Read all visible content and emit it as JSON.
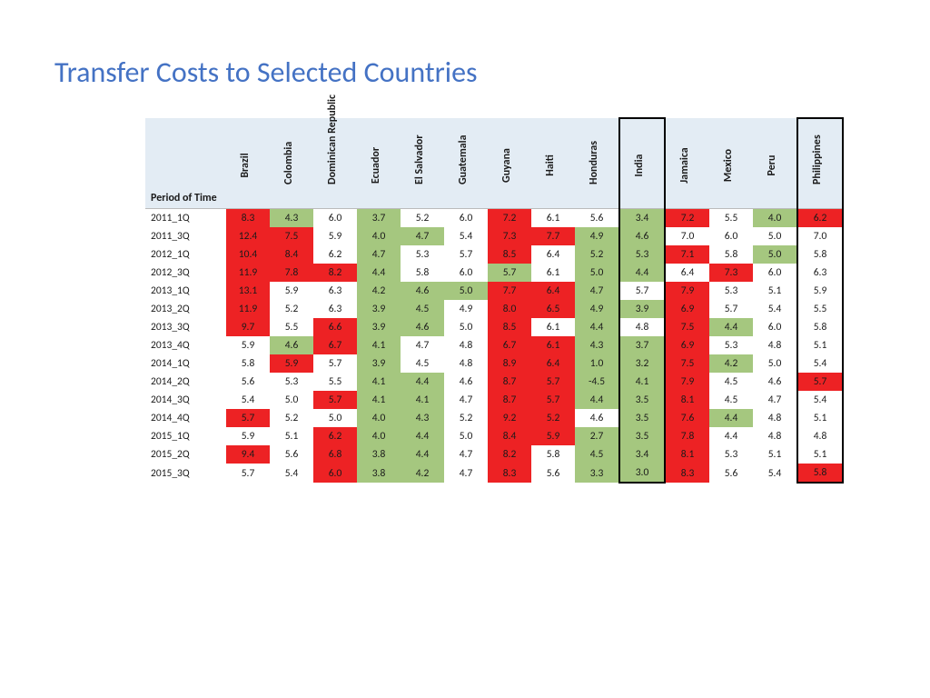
{
  "title": "Transfer Costs to Selected Countries",
  "colors": {
    "red": "#ed2224",
    "green": "#a5c77f",
    "white": "#ffffff",
    "header_bg": "#e3ecf4",
    "title_color": "#4472c4"
  },
  "period_header": "Period of Time",
  "countries": [
    "Brazil",
    "Colombia",
    "Dominican Republic",
    "Ecuador",
    "El Salvador",
    "Guatemala",
    "Guyana",
    "Haiti",
    "Honduras",
    "India",
    "Jamaica",
    "Mexico",
    "Peru",
    "Philippines"
  ],
  "highlight_columns": [
    9,
    13
  ],
  "rows": [
    {
      "period": "2011_1Q",
      "cells": [
        [
          "8.3",
          "r"
        ],
        [
          "4.3",
          "g"
        ],
        [
          "6.0",
          "w"
        ],
        [
          "3.7",
          "g"
        ],
        [
          "5.2",
          "w"
        ],
        [
          "6.0",
          "w"
        ],
        [
          "7.2",
          "r"
        ],
        [
          "6.1",
          "w"
        ],
        [
          "5.6",
          "w"
        ],
        [
          "3.4",
          "g"
        ],
        [
          "7.2",
          "r"
        ],
        [
          "5.5",
          "w"
        ],
        [
          "4.0",
          "g"
        ],
        [
          "6.2",
          "r"
        ]
      ]
    },
    {
      "period": "2011_3Q",
      "cells": [
        [
          "12.4",
          "r"
        ],
        [
          "7.5",
          "r"
        ],
        [
          "5.9",
          "w"
        ],
        [
          "4.0",
          "g"
        ],
        [
          "4.7",
          "g"
        ],
        [
          "5.4",
          "w"
        ],
        [
          "7.3",
          "r"
        ],
        [
          "7.7",
          "r"
        ],
        [
          "4.9",
          "g"
        ],
        [
          "4.6",
          "g"
        ],
        [
          "7.0",
          "w"
        ],
        [
          "6.0",
          "w"
        ],
        [
          "5.0",
          "w"
        ],
        [
          "7.0",
          "w"
        ]
      ]
    },
    {
      "period": "2012_1Q",
      "cells": [
        [
          "10.4",
          "r"
        ],
        [
          "8.4",
          "r"
        ],
        [
          "6.2",
          "w"
        ],
        [
          "4.7",
          "g"
        ],
        [
          "5.3",
          "w"
        ],
        [
          "5.7",
          "w"
        ],
        [
          "8.5",
          "r"
        ],
        [
          "6.4",
          "w"
        ],
        [
          "5.2",
          "g"
        ],
        [
          "5.3",
          "g"
        ],
        [
          "7.1",
          "r"
        ],
        [
          "5.8",
          "w"
        ],
        [
          "5.0",
          "g"
        ],
        [
          "5.8",
          "w"
        ]
      ]
    },
    {
      "period": "2012_3Q",
      "cells": [
        [
          "11.9",
          "r"
        ],
        [
          "7.8",
          "r"
        ],
        [
          "8.2",
          "r"
        ],
        [
          "4.4",
          "g"
        ],
        [
          "5.8",
          "w"
        ],
        [
          "6.0",
          "w"
        ],
        [
          "5.7",
          "g"
        ],
        [
          "6.1",
          "w"
        ],
        [
          "5.0",
          "g"
        ],
        [
          "4.4",
          "g"
        ],
        [
          "6.4",
          "w"
        ],
        [
          "7.3",
          "r"
        ],
        [
          "6.0",
          "w"
        ],
        [
          "6.3",
          "w"
        ]
      ]
    },
    {
      "period": "2013_1Q",
      "cells": [
        [
          "13.1",
          "r"
        ],
        [
          "5.9",
          "w"
        ],
        [
          "6.3",
          "w"
        ],
        [
          "4.2",
          "g"
        ],
        [
          "4.6",
          "g"
        ],
        [
          "5.0",
          "g"
        ],
        [
          "7.7",
          "r"
        ],
        [
          "6.4",
          "r"
        ],
        [
          "4.7",
          "g"
        ],
        [
          "5.7",
          "w"
        ],
        [
          "7.9",
          "r"
        ],
        [
          "5.3",
          "w"
        ],
        [
          "5.1",
          "w"
        ],
        [
          "5.9",
          "w"
        ]
      ]
    },
    {
      "period": "2013_2Q",
      "cells": [
        [
          "11.9",
          "r"
        ],
        [
          "5.2",
          "w"
        ],
        [
          "6.3",
          "w"
        ],
        [
          "3.9",
          "g"
        ],
        [
          "4.5",
          "g"
        ],
        [
          "4.9",
          "w"
        ],
        [
          "8.0",
          "r"
        ],
        [
          "6.5",
          "r"
        ],
        [
          "4.9",
          "g"
        ],
        [
          "3.9",
          "g"
        ],
        [
          "6.9",
          "r"
        ],
        [
          "5.7",
          "w"
        ],
        [
          "5.4",
          "w"
        ],
        [
          "5.5",
          "w"
        ]
      ]
    },
    {
      "period": "2013_3Q",
      "cells": [
        [
          "9.7",
          "r"
        ],
        [
          "5.5",
          "w"
        ],
        [
          "6.6",
          "r"
        ],
        [
          "3.9",
          "g"
        ],
        [
          "4.6",
          "g"
        ],
        [
          "5.0",
          "w"
        ],
        [
          "8.5",
          "r"
        ],
        [
          "6.1",
          "w"
        ],
        [
          "4.4",
          "g"
        ],
        [
          "4.8",
          "w"
        ],
        [
          "7.5",
          "r"
        ],
        [
          "4.4",
          "g"
        ],
        [
          "6.0",
          "w"
        ],
        [
          "5.8",
          "w"
        ]
      ]
    },
    {
      "period": "2013_4Q",
      "cells": [
        [
          "5.9",
          "w"
        ],
        [
          "4.6",
          "g"
        ],
        [
          "6.7",
          "r"
        ],
        [
          "4.1",
          "g"
        ],
        [
          "4.7",
          "w"
        ],
        [
          "4.8",
          "w"
        ],
        [
          "6.7",
          "r"
        ],
        [
          "6.1",
          "r"
        ],
        [
          "4.3",
          "g"
        ],
        [
          "3.7",
          "g"
        ],
        [
          "6.9",
          "r"
        ],
        [
          "5.3",
          "w"
        ],
        [
          "4.8",
          "w"
        ],
        [
          "5.1",
          "w"
        ]
      ]
    },
    {
      "period": "2014_1Q",
      "cells": [
        [
          "5.8",
          "w"
        ],
        [
          "5.9",
          "r"
        ],
        [
          "5.7",
          "w"
        ],
        [
          "3.9",
          "g"
        ],
        [
          "4.5",
          "w"
        ],
        [
          "4.8",
          "w"
        ],
        [
          "8.9",
          "r"
        ],
        [
          "6.4",
          "r"
        ],
        [
          "1.0",
          "g"
        ],
        [
          "3.2",
          "g"
        ],
        [
          "7.5",
          "r"
        ],
        [
          "4.2",
          "g"
        ],
        [
          "5.0",
          "w"
        ],
        [
          "5.4",
          "w"
        ]
      ]
    },
    {
      "period": "2014_2Q",
      "cells": [
        [
          "5.6",
          "w"
        ],
        [
          "5.3",
          "w"
        ],
        [
          "5.5",
          "w"
        ],
        [
          "4.1",
          "g"
        ],
        [
          "4.4",
          "g"
        ],
        [
          "4.6",
          "w"
        ],
        [
          "8.7",
          "r"
        ],
        [
          "5.7",
          "r"
        ],
        [
          "-4.5",
          "g"
        ],
        [
          "4.1",
          "g"
        ],
        [
          "7.9",
          "r"
        ],
        [
          "4.5",
          "w"
        ],
        [
          "4.6",
          "w"
        ],
        [
          "5.7",
          "r"
        ]
      ]
    },
    {
      "period": "2014_3Q",
      "cells": [
        [
          "5.4",
          "w"
        ],
        [
          "5.0",
          "w"
        ],
        [
          "5.7",
          "r"
        ],
        [
          "4.1",
          "g"
        ],
        [
          "4.1",
          "g"
        ],
        [
          "4.7",
          "w"
        ],
        [
          "8.7",
          "r"
        ],
        [
          "5.7",
          "r"
        ],
        [
          "4.4",
          "g"
        ],
        [
          "3.5",
          "g"
        ],
        [
          "8.1",
          "r"
        ],
        [
          "4.5",
          "w"
        ],
        [
          "4.7",
          "w"
        ],
        [
          "5.4",
          "w"
        ]
      ]
    },
    {
      "period": "2014_4Q",
      "cells": [
        [
          "5.7",
          "r"
        ],
        [
          "5.2",
          "w"
        ],
        [
          "5.0",
          "w"
        ],
        [
          "4.0",
          "g"
        ],
        [
          "4.3",
          "g"
        ],
        [
          "5.2",
          "w"
        ],
        [
          "9.2",
          "r"
        ],
        [
          "5.2",
          "r"
        ],
        [
          "4.6",
          "w"
        ],
        [
          "3.5",
          "g"
        ],
        [
          "7.6",
          "r"
        ],
        [
          "4.4",
          "g"
        ],
        [
          "4.8",
          "w"
        ],
        [
          "5.1",
          "w"
        ]
      ]
    },
    {
      "period": "2015_1Q",
      "cells": [
        [
          "5.9",
          "w"
        ],
        [
          "5.1",
          "w"
        ],
        [
          "6.2",
          "r"
        ],
        [
          "4.0",
          "g"
        ],
        [
          "4.4",
          "g"
        ],
        [
          "5.0",
          "w"
        ],
        [
          "8.4",
          "r"
        ],
        [
          "5.9",
          "r"
        ],
        [
          "2.7",
          "g"
        ],
        [
          "3.5",
          "g"
        ],
        [
          "7.8",
          "r"
        ],
        [
          "4.4",
          "w"
        ],
        [
          "4.8",
          "w"
        ],
        [
          "4.8",
          "w"
        ]
      ]
    },
    {
      "period": "2015_2Q",
      "cells": [
        [
          "9.4",
          "r"
        ],
        [
          "5.6",
          "w"
        ],
        [
          "6.8",
          "r"
        ],
        [
          "3.8",
          "g"
        ],
        [
          "4.4",
          "g"
        ],
        [
          "4.7",
          "w"
        ],
        [
          "8.2",
          "r"
        ],
        [
          "5.8",
          "w"
        ],
        [
          "4.5",
          "g"
        ],
        [
          "3.4",
          "g"
        ],
        [
          "8.1",
          "r"
        ],
        [
          "5.3",
          "w"
        ],
        [
          "5.1",
          "w"
        ],
        [
          "5.1",
          "w"
        ]
      ]
    },
    {
      "period": "2015_3Q",
      "cells": [
        [
          "5.7",
          "w"
        ],
        [
          "5.4",
          "w"
        ],
        [
          "6.0",
          "r"
        ],
        [
          "3.8",
          "g"
        ],
        [
          "4.2",
          "g"
        ],
        [
          "4.7",
          "w"
        ],
        [
          "8.3",
          "r"
        ],
        [
          "5.6",
          "w"
        ],
        [
          "3.3",
          "g"
        ],
        [
          "3.0",
          "g"
        ],
        [
          "8.3",
          "r"
        ],
        [
          "5.6",
          "w"
        ],
        [
          "5.4",
          "w"
        ],
        [
          "5.8",
          "r"
        ]
      ]
    }
  ]
}
